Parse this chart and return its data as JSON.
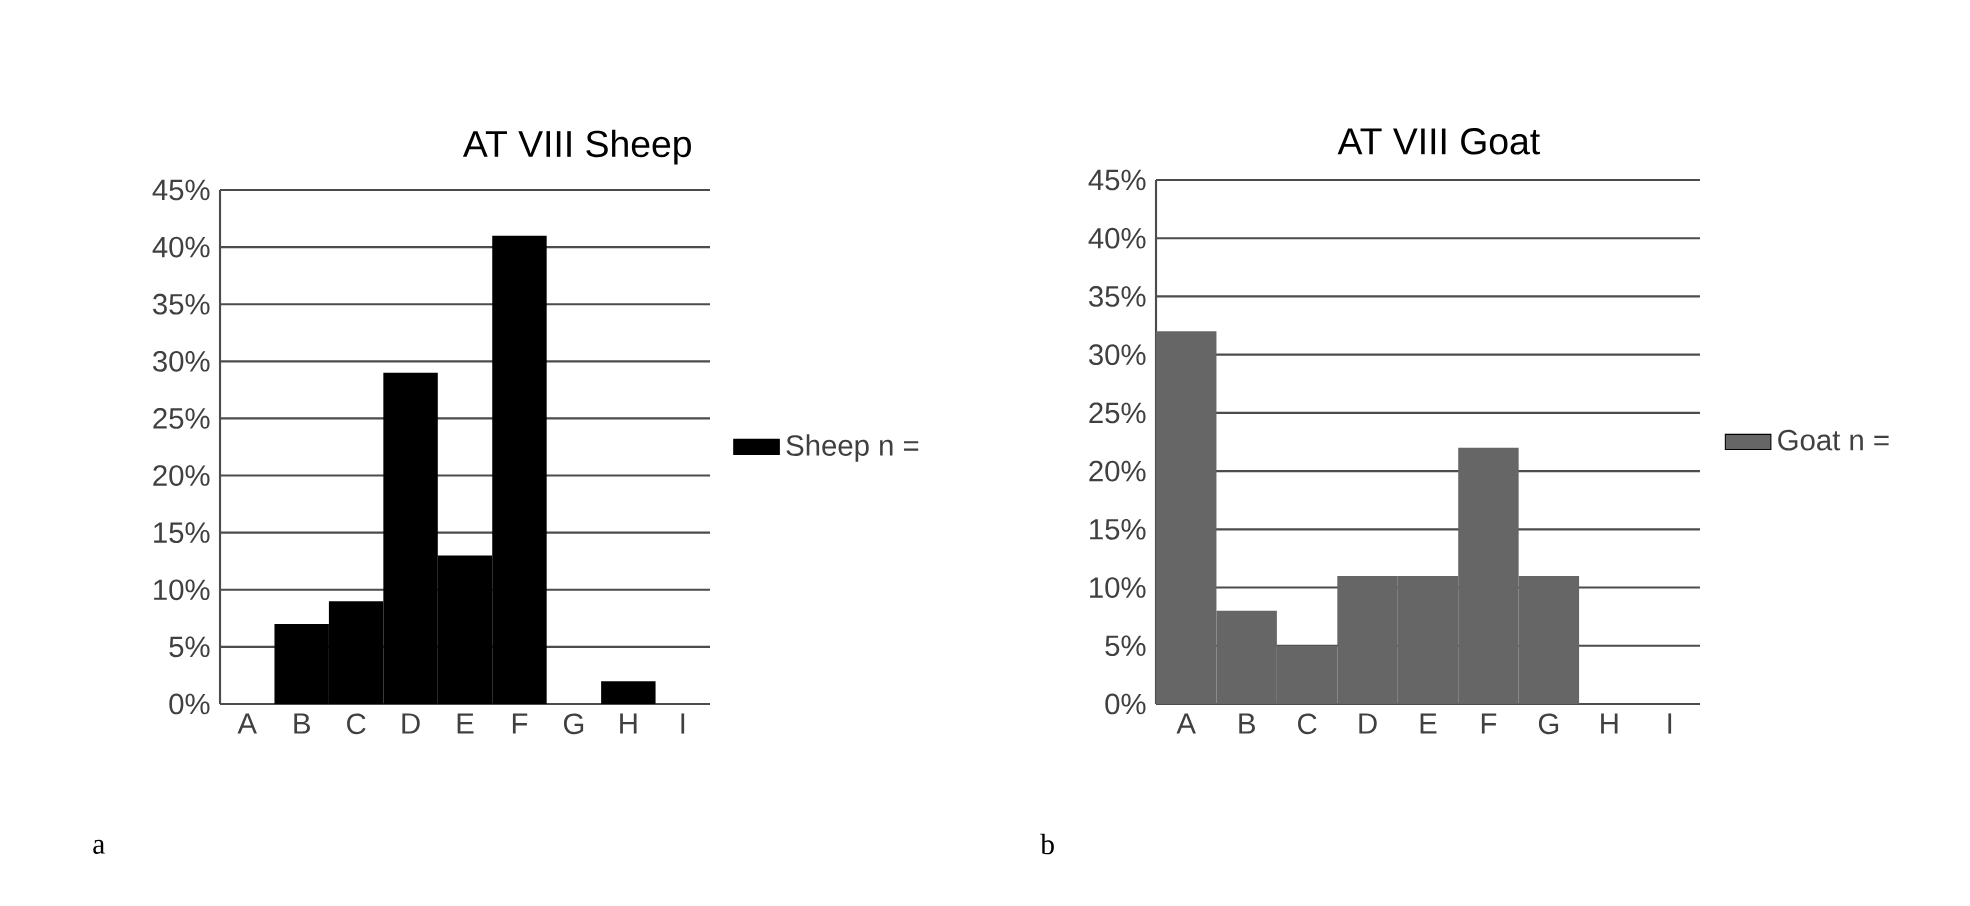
{
  "chart_data": [
    {
      "type": "bar",
      "title": "AT VIII Sheep",
      "categories": [
        "A",
        "B",
        "C",
        "D",
        "E",
        "F",
        "G",
        "H",
        "I"
      ],
      "series": [
        {
          "name": "Sheep n =",
          "color": "#000000",
          "values": [
            0,
            7,
            9,
            29,
            13,
            41,
            0,
            2,
            0
          ]
        }
      ],
      "ylim": [
        0,
        45
      ],
      "yticks": [
        {
          "value": 0,
          "label": "0%"
        },
        {
          "value": 5,
          "label": "5%"
        },
        {
          "value": 10,
          "label": "10%"
        },
        {
          "value": 15,
          "label": "15%"
        },
        {
          "value": 20,
          "label": "20%"
        },
        {
          "value": 25,
          "label": "25%"
        },
        {
          "value": 30,
          "label": "30%"
        },
        {
          "value": 35,
          "label": "35%"
        },
        {
          "value": 40,
          "label": "40%"
        },
        {
          "value": 45,
          "label": "45%"
        }
      ],
      "grid": "y",
      "legend": "right",
      "annotations": [
        "a"
      ]
    },
    {
      "type": "bar",
      "title": "AT VIII Goat",
      "categories": [
        "A",
        "B",
        "C",
        "D",
        "E",
        "F",
        "G",
        "H",
        "I"
      ],
      "series": [
        {
          "name": "Goat n =",
          "color": "#666666",
          "values": [
            32,
            8,
            5,
            11,
            11,
            22,
            11,
            0,
            0
          ]
        }
      ],
      "ylim": [
        0,
        45
      ],
      "yticks": [
        {
          "value": 0,
          "label": "0%"
        },
        {
          "value": 5,
          "label": "5%"
        },
        {
          "value": 10,
          "label": "10%"
        },
        {
          "value": 15,
          "label": "15%"
        },
        {
          "value": 20,
          "label": "20%"
        },
        {
          "value": 25,
          "label": "25%"
        },
        {
          "value": 30,
          "label": "30%"
        },
        {
          "value": 35,
          "label": "35%"
        },
        {
          "value": 40,
          "label": "40%"
        },
        {
          "value": 45,
          "label": "45%"
        }
      ],
      "grid": "y",
      "legend": "right",
      "annotations": [
        "b"
      ]
    }
  ]
}
